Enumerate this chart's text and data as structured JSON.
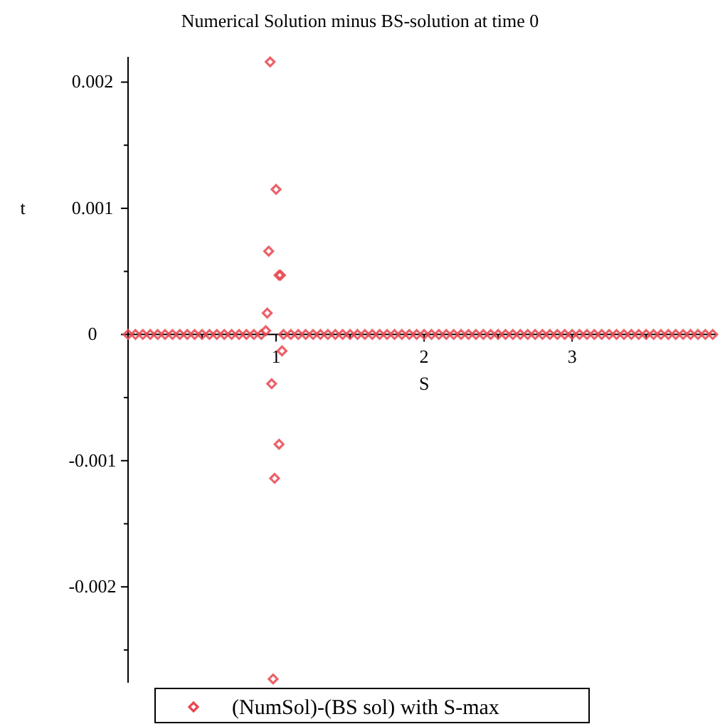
{
  "chart_data": {
    "type": "scatter",
    "title": "Numerical Solution minus BS-solution at time 0",
    "xlabel": "S",
    "ylabel": "t",
    "xlim": [
      0,
      3.97
    ],
    "ylim": [
      -0.00276,
      0.0022
    ],
    "xticks": [
      {
        "value": 0.5,
        "label": null
      },
      1,
      {
        "value": 1.5,
        "label": null
      },
      2,
      {
        "value": 2.5,
        "label": null
      },
      3,
      {
        "value": 3.5,
        "label": null
      }
    ],
    "yticks": [
      {
        "value": -0.0025,
        "label": null
      },
      {
        "value": -0.002,
        "label": "-0.002"
      },
      {
        "value": -0.0015,
        "label": null
      },
      {
        "value": -0.001,
        "label": "-0.001"
      },
      {
        "value": -0.0005,
        "label": null
      },
      0,
      {
        "value": 0.0005,
        "label": null
      },
      {
        "value": 0.001,
        "label": "0.001"
      },
      {
        "value": 0.0015,
        "label": null
      },
      {
        "value": 0.002,
        "label": "0.002"
      }
    ],
    "marker": "diamond",
    "legend": "bottom",
    "grid": false,
    "series": [
      {
        "name": "(NumSol)-(BS sol) with S-max",
        "color": "#e8474f",
        "x": [
          0,
          0.05,
          0.1,
          0.15,
          0.2,
          0.25,
          0.3,
          0.35,
          0.4,
          0.45,
          0.5,
          0.55,
          0.6,
          0.65,
          0.7,
          0.75,
          0.8,
          0.85,
          0.9,
          0.93,
          0.94,
          0.95,
          0.96,
          0.97,
          0.98,
          0.99,
          1.0,
          1.02,
          1.03,
          1.02,
          1.04,
          1.05,
          1.1,
          1.15,
          1.2,
          1.25,
          1.3,
          1.35,
          1.4,
          1.45,
          1.5,
          1.55,
          1.6,
          1.65,
          1.7,
          1.75,
          1.8,
          1.85,
          1.9,
          1.95,
          2.0,
          2.05,
          2.1,
          2.15,
          2.2,
          2.25,
          2.3,
          2.35,
          2.4,
          2.45,
          2.5,
          2.55,
          2.6,
          2.65,
          2.7,
          2.75,
          2.8,
          2.85,
          2.9,
          2.95,
          3.0,
          3.05,
          3.1,
          3.15,
          3.2,
          3.25,
          3.3,
          3.35,
          3.4,
          3.45,
          3.5,
          3.55,
          3.6,
          3.65,
          3.7,
          3.75,
          3.8,
          3.85,
          3.9,
          3.95
        ],
        "values": [
          0,
          0,
          0,
          0,
          0,
          0,
          0,
          0,
          0,
          0,
          0,
          0,
          0,
          0,
          0,
          0,
          0,
          0,
          0,
          3e-05,
          0.00017,
          0.00066,
          0.00216,
          -0.00039,
          -0.00273,
          -0.00114,
          0.00115,
          0.00047,
          0.00047,
          -0.00087,
          -0.00013,
          0,
          0,
          0,
          0,
          0,
          0,
          0,
          0,
          0,
          0,
          0,
          0,
          0,
          0,
          0,
          0,
          0,
          0,
          0,
          0,
          0,
          0,
          0,
          0,
          0,
          0,
          0,
          0,
          0,
          0,
          0,
          0,
          0,
          0,
          0,
          0,
          0,
          0,
          0,
          0,
          0,
          0,
          0,
          0,
          0,
          0,
          0,
          0,
          0,
          0,
          0,
          0,
          0,
          0,
          0,
          0,
          0,
          0,
          0
        ]
      }
    ]
  }
}
